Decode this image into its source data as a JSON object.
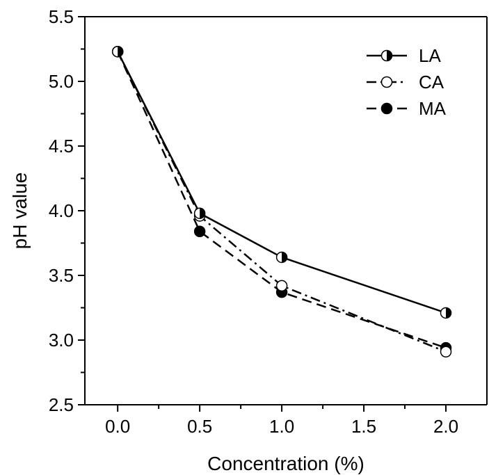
{
  "chart_data": {
    "type": "line",
    "title": "",
    "xlabel": "Concentration (%)",
    "ylabel": "pH value",
    "xlim": [
      -0.2,
      2.25
    ],
    "ylim": [
      2.5,
      5.5
    ],
    "xticks": [
      0.0,
      0.5,
      1.0,
      1.5,
      2.0
    ],
    "xtick_labels": [
      "0.0",
      "0.5",
      "1.0",
      "1.5",
      "2.0"
    ],
    "yticks": [
      2.5,
      3.0,
      3.5,
      4.0,
      4.5,
      5.0,
      5.5
    ],
    "ytick_labels": [
      "2.5",
      "3.0",
      "3.5",
      "4.0",
      "4.5",
      "5.0",
      "5.5"
    ],
    "grid": false,
    "legend_position": "top-right",
    "series": [
      {
        "name": "LA",
        "line_style": "solid",
        "marker": "half-filled-circle",
        "x": [
          0.0,
          0.5,
          1.0,
          2.0
        ],
        "y": [
          5.23,
          3.98,
          3.64,
          3.21
        ]
      },
      {
        "name": "CA",
        "line_style": "dash-dot",
        "marker": "open-circle",
        "x": [
          0.0,
          0.5,
          1.0,
          2.0
        ],
        "y": [
          5.23,
          3.96,
          3.42,
          2.91
        ]
      },
      {
        "name": "MA",
        "line_style": "dashed",
        "marker": "filled-circle",
        "x": [
          0.0,
          0.5,
          1.0,
          2.0
        ],
        "y": [
          5.23,
          3.84,
          3.37,
          2.94
        ]
      }
    ]
  }
}
